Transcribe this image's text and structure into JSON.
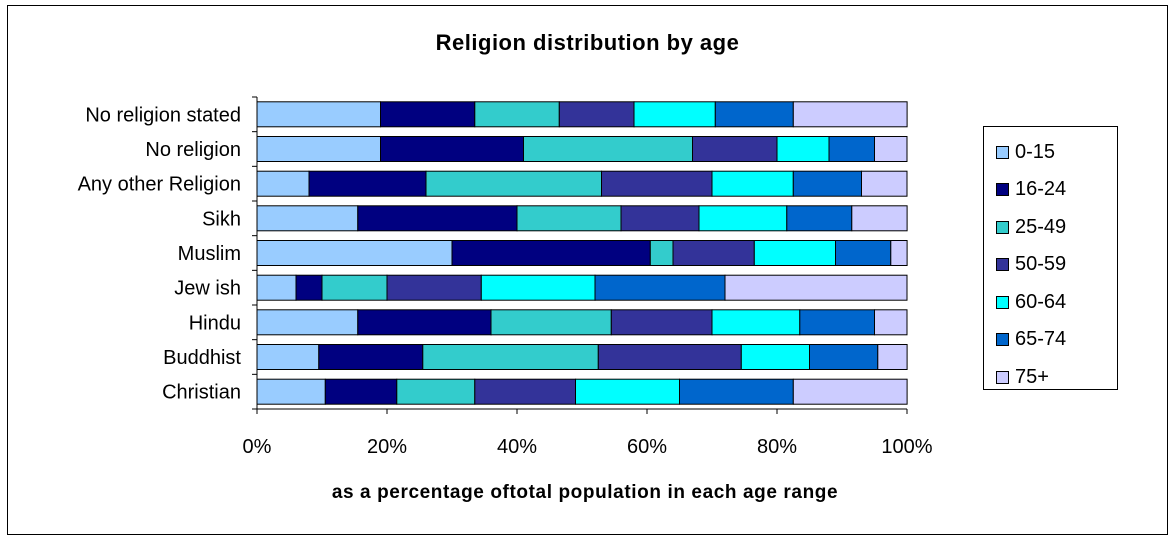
{
  "chart_data": {
    "type": "bar",
    "orientation": "horizontal",
    "stacked": "percent",
    "title": "Religion distribution by age",
    "xlabel": "as a percentage oftotal population in each age range",
    "ylabel": "",
    "xlim": [
      0,
      100
    ],
    "ticks": [
      "0%",
      "20%",
      "40%",
      "60%",
      "80%",
      "100%"
    ],
    "tick_values": [
      0,
      20,
      40,
      60,
      80,
      100
    ],
    "grid": false,
    "legend_position": "right",
    "categories": [
      "No religion stated",
      "No religion",
      "Any other Religion",
      "Sikh",
      "Muslim",
      "Jew ish",
      "Hindu",
      "Buddhist",
      "Christian"
    ],
    "series": [
      {
        "name": "0-15",
        "color": "#99CCFF",
        "values": [
          19,
          19,
          8,
          15.5,
          30,
          6,
          15.5,
          9.5,
          10.5
        ]
      },
      {
        "name": "16-24",
        "color": "#000080",
        "values": [
          14.5,
          22,
          18,
          24.5,
          30.5,
          4,
          20.5,
          16,
          11
        ]
      },
      {
        "name": "25-49",
        "color": "#33CCCC",
        "values": [
          13,
          26,
          27,
          16,
          3.5,
          10,
          18.5,
          27,
          12
        ]
      },
      {
        "name": "50-59",
        "color": "#333399",
        "values": [
          11.5,
          13,
          17,
          12,
          12.5,
          14.5,
          15.5,
          22,
          15.5
        ]
      },
      {
        "name": "60-64",
        "color": "#00FFFF",
        "values": [
          12.5,
          8,
          12.5,
          13.5,
          12.5,
          17.5,
          13.5,
          10.5,
          16
        ]
      },
      {
        "name": "65-74",
        "color": "#0066CC",
        "values": [
          12,
          7,
          10.5,
          10,
          8.5,
          20,
          11.5,
          10.5,
          17.5
        ]
      },
      {
        "name": "75+",
        "color": "#CCCCFF",
        "values": [
          17.5,
          5,
          7,
          8.5,
          2.5,
          28,
          5,
          4.5,
          17.5
        ]
      }
    ]
  }
}
